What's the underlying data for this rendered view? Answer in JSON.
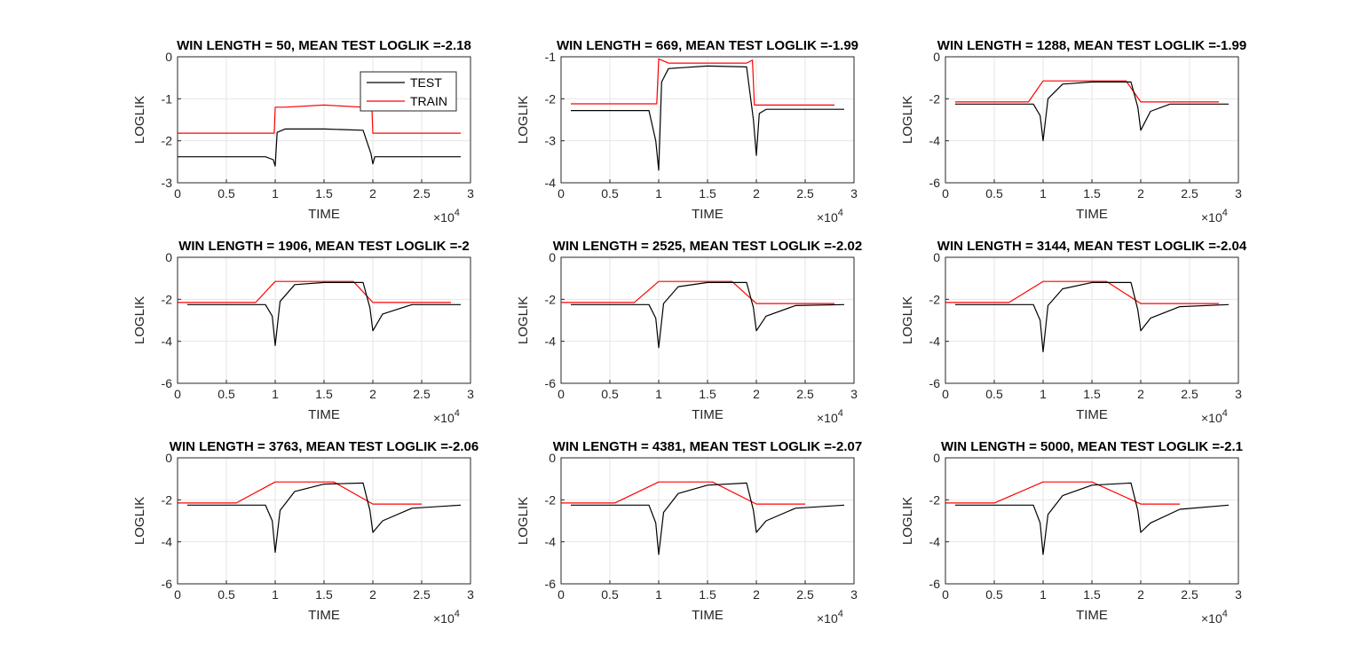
{
  "figure": {
    "xlabel": "TIME",
    "ylabel": "LOGLIK",
    "x_exponent_base": "×10",
    "x_exponent_power": "4",
    "legend": {
      "entries": [
        "TEST",
        "TRAIN"
      ],
      "placement": "top-right",
      "panel": 0
    },
    "colors": {
      "test": "#000000",
      "train": "#ff0000",
      "grid": "#e6e6e6",
      "axis": "#262626"
    }
  },
  "chart_data": [
    {
      "type": "line",
      "title": "WIN LENGTH = 50, MEAN TEST LOGLIK =-2.18",
      "xlim": [
        0,
        3
      ],
      "ylim": [
        -3,
        0
      ],
      "xticks": [
        "0",
        "0.5",
        "1",
        "1.5",
        "2",
        "2.5",
        "3"
      ],
      "yticks": [
        "-3",
        "-2",
        "-1",
        "0"
      ],
      "series": [
        {
          "name": "TEST",
          "x": [
            0,
            0.9,
            0.98,
            1.0,
            1.02,
            1.1,
            1.5,
            1.9,
            1.98,
            2.0,
            2.02,
            2.1,
            2.9
          ],
          "y": [
            -2.38,
            -2.38,
            -2.45,
            -2.6,
            -1.8,
            -1.72,
            -1.72,
            -1.75,
            -2.3,
            -2.55,
            -2.38,
            -2.38,
            -2.38
          ]
        },
        {
          "name": "TRAIN",
          "x": [
            0,
            0.99,
            1.0,
            1.1,
            1.5,
            1.9,
            1.99,
            2.0,
            2.9
          ],
          "y": [
            -1.82,
            -1.82,
            -1.2,
            -1.2,
            -1.15,
            -1.2,
            -1.2,
            -1.82,
            -1.82
          ]
        }
      ]
    },
    {
      "type": "line",
      "title": "WIN LENGTH = 669, MEAN TEST LOGLIK =-1.99",
      "xlim": [
        0,
        3
      ],
      "ylim": [
        -4,
        -1
      ],
      "xticks": [
        "0",
        "0.5",
        "1",
        "1.5",
        "2",
        "2.5",
        "3"
      ],
      "yticks": [
        "-4",
        "-3",
        "-2",
        "-1"
      ],
      "series": [
        {
          "name": "TEST",
          "x": [
            0.1,
            0.9,
            0.97,
            1.0,
            1.03,
            1.1,
            1.5,
            1.9,
            1.97,
            2.0,
            2.03,
            2.1,
            2.9
          ],
          "y": [
            -2.28,
            -2.28,
            -3.0,
            -3.7,
            -1.6,
            -1.28,
            -1.22,
            -1.24,
            -2.5,
            -3.35,
            -2.35,
            -2.25,
            -2.25
          ]
        },
        {
          "name": "TRAIN",
          "x": [
            0.1,
            0.98,
            1.0,
            1.1,
            1.5,
            1.9,
            1.96,
            1.98,
            2.0,
            2.8
          ],
          "y": [
            -2.12,
            -2.12,
            -1.05,
            -1.15,
            -1.15,
            -1.15,
            -1.08,
            -2.15,
            -2.15,
            -2.15
          ]
        }
      ]
    },
    {
      "type": "line",
      "title": "WIN LENGTH = 1288, MEAN TEST LOGLIK =-1.99",
      "xlim": [
        0,
        3
      ],
      "ylim": [
        -6,
        0
      ],
      "xticks": [
        "0",
        "0.5",
        "1",
        "1.5",
        "2",
        "2.5",
        "3"
      ],
      "yticks": [
        "-6",
        "-4",
        "-2",
        "0"
      ],
      "series": [
        {
          "name": "TEST",
          "x": [
            0.1,
            0.9,
            0.97,
            1.0,
            1.05,
            1.2,
            1.5,
            1.9,
            1.97,
            2.0,
            2.1,
            2.3,
            2.9
          ],
          "y": [
            -2.25,
            -2.25,
            -2.8,
            -4.0,
            -2.0,
            -1.3,
            -1.2,
            -1.2,
            -2.4,
            -3.5,
            -2.6,
            -2.25,
            -2.25
          ]
        },
        {
          "name": "TRAIN",
          "x": [
            0.1,
            0.85,
            1.0,
            1.5,
            1.85,
            2.0,
            2.8
          ],
          "y": [
            -2.15,
            -2.15,
            -1.15,
            -1.15,
            -1.15,
            -2.15,
            -2.15
          ]
        }
      ]
    },
    {
      "type": "line",
      "title": "WIN LENGTH = 1906, MEAN TEST LOGLIK =-2",
      "xlim": [
        0,
        3
      ],
      "ylim": [
        -6,
        0
      ],
      "xticks": [
        "0",
        "0.5",
        "1",
        "1.5",
        "2",
        "2.5",
        "3"
      ],
      "yticks": [
        "-6",
        "-4",
        "-2",
        "0"
      ],
      "series": [
        {
          "name": "TEST",
          "x": [
            0.1,
            0.9,
            0.97,
            1.0,
            1.05,
            1.2,
            1.5,
            1.9,
            1.97,
            2.0,
            2.1,
            2.4,
            2.9
          ],
          "y": [
            -2.25,
            -2.25,
            -2.8,
            -4.2,
            -2.1,
            -1.3,
            -1.2,
            -1.2,
            -2.4,
            -3.5,
            -2.7,
            -2.25,
            -2.25
          ]
        },
        {
          "name": "TRAIN",
          "x": [
            0.0,
            0.8,
            1.0,
            1.5,
            1.8,
            2.0,
            2.8
          ],
          "y": [
            -2.15,
            -2.15,
            -1.15,
            -1.15,
            -1.15,
            -2.15,
            -2.15
          ]
        }
      ]
    },
    {
      "type": "line",
      "title": "WIN LENGTH = 2525, MEAN TEST LOGLIK =-2.02",
      "xlim": [
        0,
        3
      ],
      "ylim": [
        -6,
        0
      ],
      "xticks": [
        "0",
        "0.5",
        "1",
        "1.5",
        "2",
        "2.5",
        "3"
      ],
      "yticks": [
        "-6",
        "-4",
        "-2",
        "0"
      ],
      "series": [
        {
          "name": "TEST",
          "x": [
            0.1,
            0.9,
            0.97,
            1.0,
            1.05,
            1.2,
            1.5,
            1.9,
            1.97,
            2.0,
            2.1,
            2.4,
            2.9
          ],
          "y": [
            -2.25,
            -2.25,
            -2.9,
            -4.3,
            -2.2,
            -1.4,
            -1.2,
            -1.2,
            -2.4,
            -3.5,
            -2.8,
            -2.3,
            -2.25
          ]
        },
        {
          "name": "TRAIN",
          "x": [
            0.0,
            0.75,
            1.0,
            1.5,
            1.75,
            2.0,
            2.8
          ],
          "y": [
            -2.15,
            -2.15,
            -1.15,
            -1.15,
            -1.15,
            -2.2,
            -2.2
          ]
        }
      ]
    },
    {
      "type": "line",
      "title": "WIN LENGTH = 3144, MEAN TEST LOGLIK =-2.04",
      "xlim": [
        0,
        3
      ],
      "ylim": [
        -6,
        0
      ],
      "xticks": [
        "0",
        "0.5",
        "1",
        "1.5",
        "2",
        "2.5",
        "3"
      ],
      "yticks": [
        "-6",
        "-4",
        "-2",
        "0"
      ],
      "series": [
        {
          "name": "TEST",
          "x": [
            0.1,
            0.9,
            0.97,
            1.0,
            1.05,
            1.2,
            1.5,
            1.9,
            1.97,
            2.0,
            2.1,
            2.4,
            2.9
          ],
          "y": [
            -2.25,
            -2.25,
            -3.0,
            -4.5,
            -2.3,
            -1.5,
            -1.2,
            -1.2,
            -2.5,
            -3.5,
            -2.9,
            -2.35,
            -2.25
          ]
        },
        {
          "name": "TRAIN",
          "x": [
            0.0,
            0.65,
            1.0,
            1.5,
            1.65,
            2.0,
            2.8
          ],
          "y": [
            -2.15,
            -2.15,
            -1.15,
            -1.15,
            -1.15,
            -2.2,
            -2.2
          ]
        }
      ]
    },
    {
      "type": "line",
      "title": "WIN LENGTH = 3763, MEAN TEST LOGLIK =-2.06",
      "xlim": [
        0,
        3
      ],
      "ylim": [
        -6,
        0
      ],
      "xticks": [
        "0",
        "0.5",
        "1",
        "1.5",
        "2",
        "2.5",
        "3"
      ],
      "yticks": [
        "-6",
        "-4",
        "-2",
        "0"
      ],
      "series": [
        {
          "name": "TEST",
          "x": [
            0.1,
            0.9,
            0.97,
            1.0,
            1.05,
            1.2,
            1.5,
            1.9,
            1.97,
            2.0,
            2.1,
            2.4,
            2.9
          ],
          "y": [
            -2.25,
            -2.25,
            -3.0,
            -4.5,
            -2.5,
            -1.6,
            -1.25,
            -1.2,
            -2.5,
            -3.55,
            -3.0,
            -2.4,
            -2.25
          ]
        },
        {
          "name": "TRAIN",
          "x": [
            0.0,
            0.6,
            1.0,
            1.5,
            1.6,
            2.0,
            2.5
          ],
          "y": [
            -2.15,
            -2.15,
            -1.15,
            -1.15,
            -1.15,
            -2.2,
            -2.2
          ]
        }
      ]
    },
    {
      "type": "line",
      "title": "WIN LENGTH = 4381, MEAN TEST LOGLIK =-2.07",
      "xlim": [
        0,
        3
      ],
      "ylim": [
        -6,
        0
      ],
      "xticks": [
        "0",
        "0.5",
        "1",
        "1.5",
        "2",
        "2.5",
        "3"
      ],
      "yticks": [
        "-6",
        "-4",
        "-2",
        "0"
      ],
      "series": [
        {
          "name": "TEST",
          "x": [
            0.1,
            0.9,
            0.97,
            1.0,
            1.05,
            1.2,
            1.5,
            1.9,
            1.97,
            2.0,
            2.1,
            2.4,
            2.9
          ],
          "y": [
            -2.25,
            -2.25,
            -3.1,
            -4.6,
            -2.6,
            -1.7,
            -1.3,
            -1.2,
            -2.5,
            -3.55,
            -3.0,
            -2.4,
            -2.25
          ]
        },
        {
          "name": "TRAIN",
          "x": [
            0.0,
            0.55,
            1.0,
            1.5,
            1.55,
            2.0,
            2.5
          ],
          "y": [
            -2.15,
            -2.15,
            -1.15,
            -1.15,
            -1.15,
            -2.2,
            -2.2
          ]
        }
      ]
    },
    {
      "type": "line",
      "title": "WIN LENGTH = 5000, MEAN TEST LOGLIK =-2.1",
      "xlim": [
        0,
        3
      ],
      "ylim": [
        -6,
        0
      ],
      "xticks": [
        "0",
        "0.5",
        "1",
        "1.5",
        "2",
        "2.5",
        "3"
      ],
      "yticks": [
        "-6",
        "-4",
        "-2",
        "0"
      ],
      "series": [
        {
          "name": "TEST",
          "x": [
            0.1,
            0.9,
            0.97,
            1.0,
            1.05,
            1.2,
            1.5,
            1.9,
            1.97,
            2.0,
            2.1,
            2.4,
            2.9
          ],
          "y": [
            -2.25,
            -2.25,
            -3.1,
            -4.6,
            -2.7,
            -1.8,
            -1.3,
            -1.2,
            -2.5,
            -3.55,
            -3.1,
            -2.45,
            -2.25
          ]
        },
        {
          "name": "TRAIN",
          "x": [
            0.0,
            0.5,
            1.0,
            1.5,
            2.0,
            2.4
          ],
          "y": [
            -2.15,
            -2.15,
            -1.15,
            -1.15,
            -2.2,
            -2.2
          ]
        }
      ]
    }
  ]
}
